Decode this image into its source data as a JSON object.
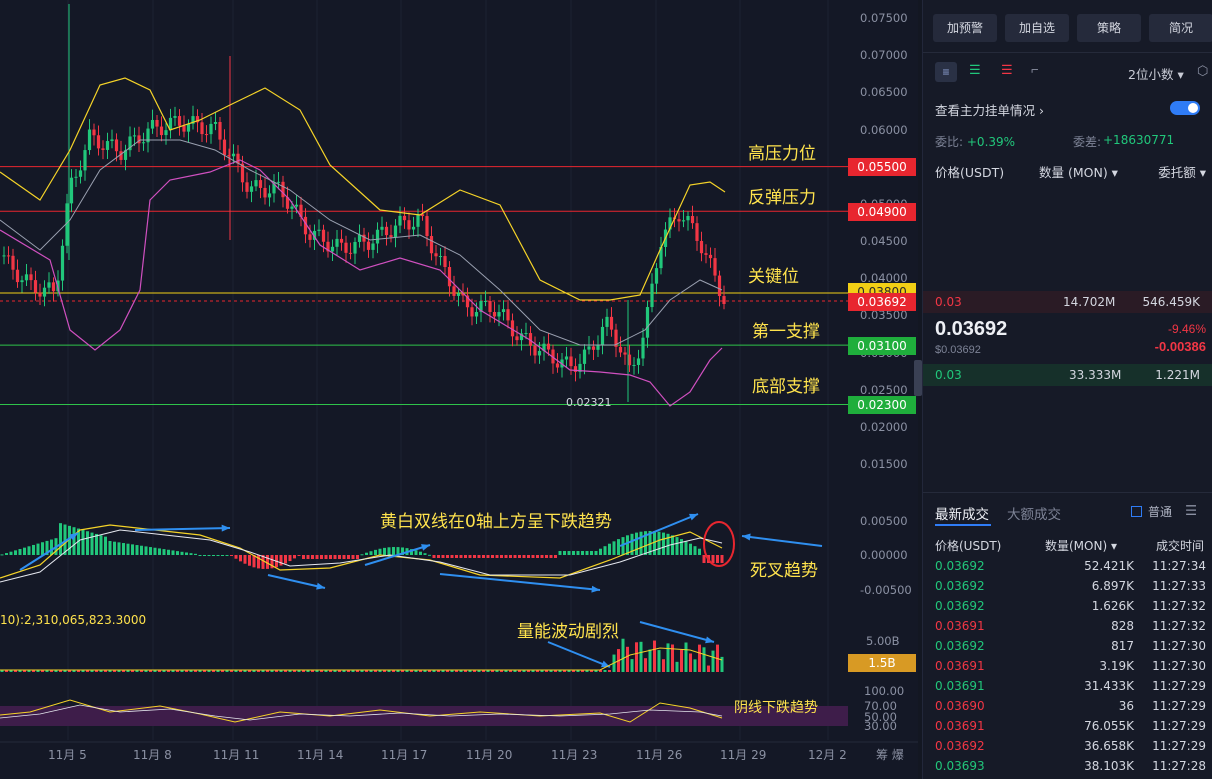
{
  "chart": {
    "y_axis_labels": [
      "0.07500",
      "0.07000",
      "0.06500",
      "0.06000",
      "0.05500",
      "0.05000",
      "0.04500",
      "0.04000",
      "0.03500",
      "0.03000",
      "0.02500",
      "0.02000",
      "0.01500"
    ],
    "macd_axis_labels": [
      "0.00500",
      "0.00000",
      "-0.00500"
    ],
    "vol_axis_labels": [
      "5.00B"
    ],
    "rsi_axis_labels": [
      "100.00",
      "70.00",
      "50.00",
      "30.00"
    ],
    "x_axis_labels": [
      "11月 5",
      "11月 8",
      "11月 11",
      "11月 14",
      "11月 17",
      "11月 20",
      "11月 23",
      "11月 26",
      "11月 29",
      "12月 2"
    ],
    "x_axis_extra": "筹 爆",
    "tags": {
      "resistance_high": "0.05500",
      "rebound": "0.04900",
      "key": "0.03800",
      "current": "0.03692",
      "support1": "0.03100",
      "bottom": "0.02300",
      "volume": "1.5B"
    },
    "low_marker": "0.02321",
    "volume_label": "10):2,310,065,823.3000",
    "annotations": {
      "high_pressure": "高压力位",
      "rebound_pressure": "反弹压力",
      "key_level": "关键位",
      "first_support": "第一支撑",
      "bottom_support": "底部支撑",
      "macd_note": "黄白双线在0轴上方呈下跌趋势",
      "death_cross": "死叉趋势",
      "volume_note": "量能波动剧烈",
      "rsi_note": "阴线下跌趋势"
    },
    "colors": {
      "up": "#21c77b",
      "down": "#f23645",
      "boll_upper": "#f5d328",
      "boll_lower": "#d050c0",
      "boll_mid": "#9aa0b0"
    }
  },
  "panel": {
    "buttons": [
      "加预警",
      "加自选",
      "策略",
      "简况"
    ],
    "decimal_select": "2位小数",
    "orderbook_toggle_label": "查看主力挂单情况",
    "ratio_label": "委比:",
    "ratio_value": "+0.39%",
    "diff_label": "委差:",
    "diff_value": "+18630771",
    "headers": {
      "price": "价格(USDT)",
      "qty": "数量 (MON)",
      "total": "委托额"
    },
    "ask": {
      "price": "0.03",
      "qty": "14.702M",
      "total": "546.459K"
    },
    "last_price": "0.03692",
    "last_price_usd": "$0.03692",
    "change_pct": "-9.46%",
    "change_abs": "-0.00386",
    "bid": {
      "price": "0.03",
      "qty": "33.333M",
      "total": "1.221M"
    },
    "trades_tabs": [
      "最新成交",
      "大额成交"
    ],
    "normal_label": "普通",
    "trade_headers": {
      "price": "价格(USDT)",
      "qty": "数量(MON)",
      "time": "成交时间"
    },
    "trades": [
      {
        "price": "0.03692",
        "qty": "52.421K",
        "time": "11:27:34",
        "side": "up"
      },
      {
        "price": "0.03692",
        "qty": "6.897K",
        "time": "11:27:33",
        "side": "up"
      },
      {
        "price": "0.03692",
        "qty": "1.626K",
        "time": "11:27:32",
        "side": "up"
      },
      {
        "price": "0.03691",
        "qty": "828",
        "time": "11:27:32",
        "side": "down"
      },
      {
        "price": "0.03692",
        "qty": "817",
        "time": "11:27:30",
        "side": "up"
      },
      {
        "price": "0.03691",
        "qty": "3.19K",
        "time": "11:27:30",
        "side": "down"
      },
      {
        "price": "0.03691",
        "qty": "31.433K",
        "time": "11:27:29",
        "side": "up"
      },
      {
        "price": "0.03690",
        "qty": "36",
        "time": "11:27:29",
        "side": "down"
      },
      {
        "price": "0.03691",
        "qty": "76.055K",
        "time": "11:27:29",
        "side": "down"
      },
      {
        "price": "0.03692",
        "qty": "36.658K",
        "time": "11:27:29",
        "side": "down"
      },
      {
        "price": "0.03693",
        "qty": "38.103K",
        "time": "11:27:28",
        "side": "up"
      }
    ]
  }
}
